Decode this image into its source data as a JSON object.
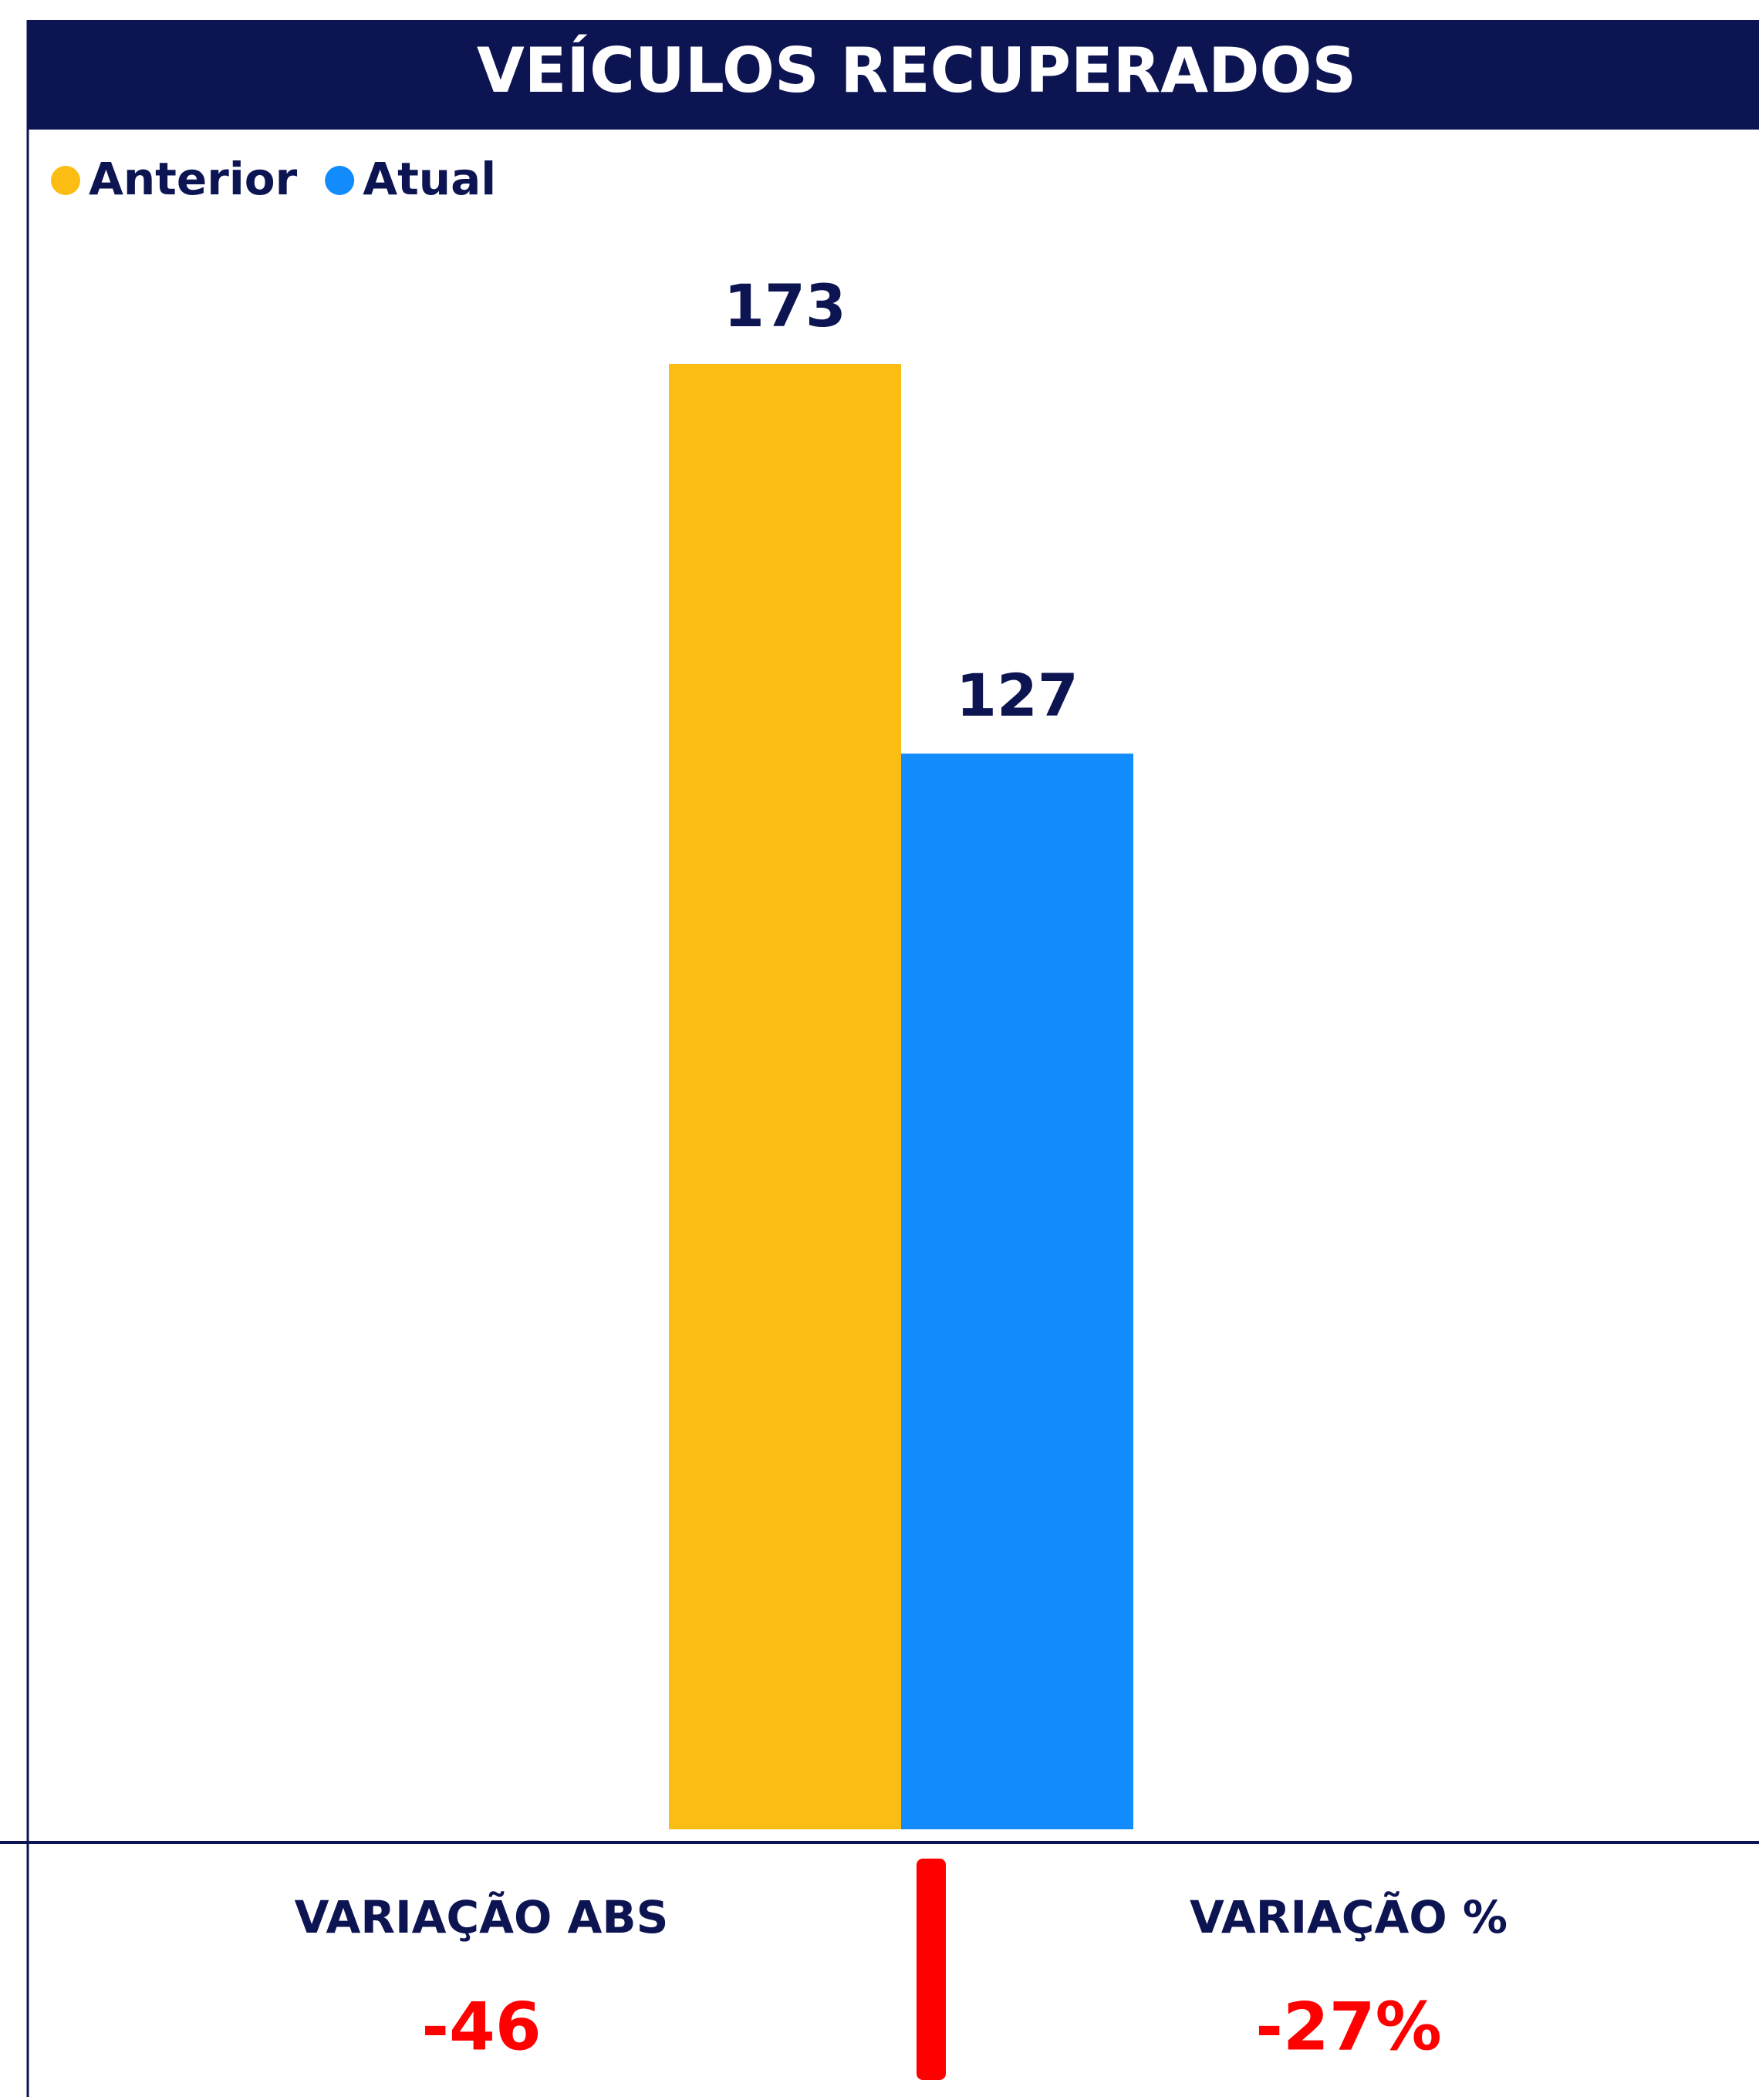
{
  "chart_data": {
    "type": "bar",
    "title": "VEÍCULOS RECUPERADOS",
    "categories": [
      null
    ],
    "series": [
      {
        "name": "Anterior",
        "color": "#fbbd13",
        "values": [
          173
        ]
      },
      {
        "name": "Atual",
        "color": "#128bfd",
        "values": [
          127
        ]
      }
    ],
    "legend": "top-left"
  },
  "kpis": [
    {
      "label": "VARIAÇÃO ABS",
      "value": -46
    },
    {
      "label": "VARIAÇÃO %",
      "value": -27,
      "value_label": "-27%"
    }
  ]
}
